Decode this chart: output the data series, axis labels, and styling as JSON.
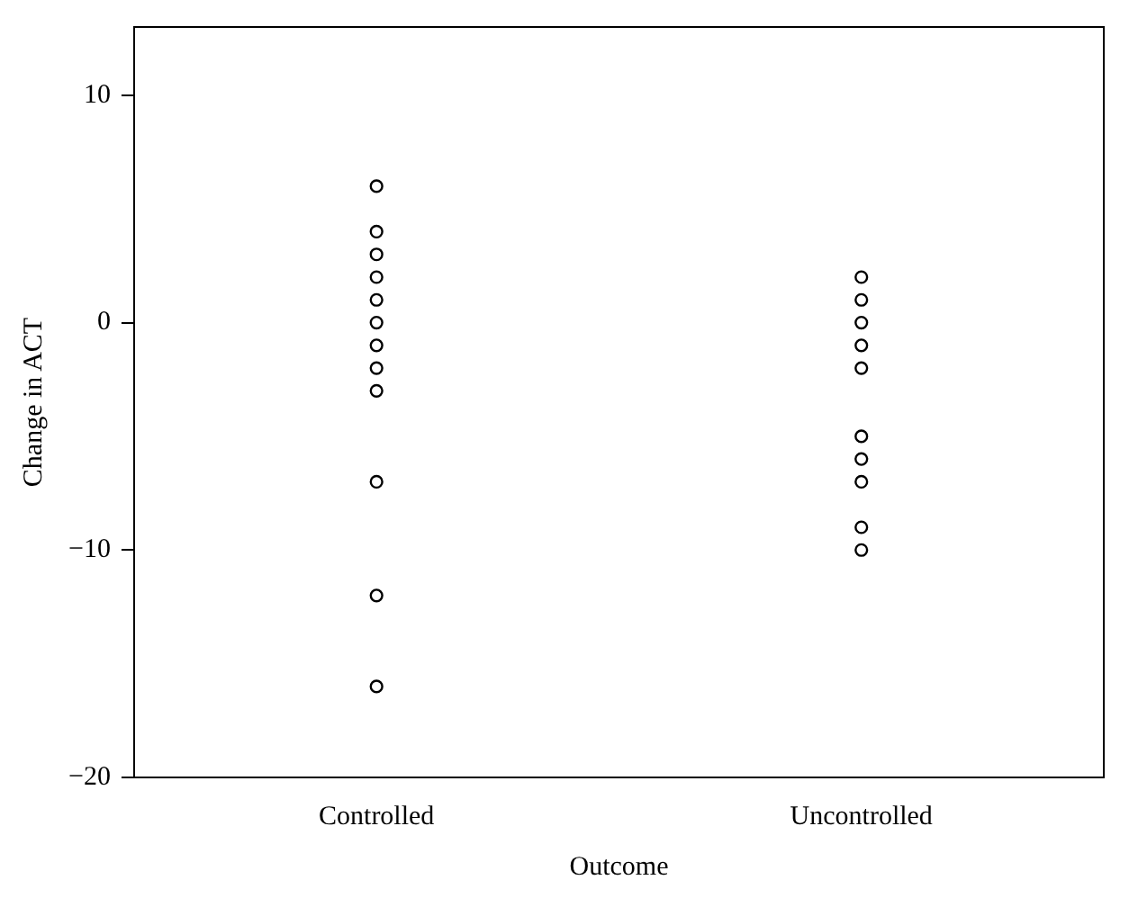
{
  "chart_data": {
    "type": "scatter",
    "xlabel": "Outcome",
    "ylabel": "Change in ACT",
    "categories": [
      "Controlled",
      "Uncontrolled"
    ],
    "series": [
      {
        "color": "#000000",
        "x": [
          "Controlled",
          "Controlled",
          "Controlled",
          "Controlled",
          "Controlled",
          "Controlled",
          "Controlled",
          "Controlled",
          "Controlled",
          "Controlled",
          "Controlled",
          "Controlled",
          "Uncontrolled",
          "Uncontrolled",
          "Uncontrolled",
          "Uncontrolled",
          "Uncontrolled",
          "Uncontrolled",
          "Uncontrolled",
          "Uncontrolled",
          "Uncontrolled",
          "Uncontrolled"
        ],
        "values": [
          6,
          4,
          3,
          2,
          1,
          0,
          -1,
          -2,
          -3,
          -7,
          -12,
          -16,
          2,
          1,
          0,
          -1,
          -2,
          -5,
          -6,
          -7,
          -9,
          -10
        ]
      }
    ],
    "ylim": [
      -20,
      13
    ],
    "yticks": [
      -20,
      -10,
      0,
      10
    ],
    "grid": false,
    "legend": false,
    "marker": "circle"
  }
}
